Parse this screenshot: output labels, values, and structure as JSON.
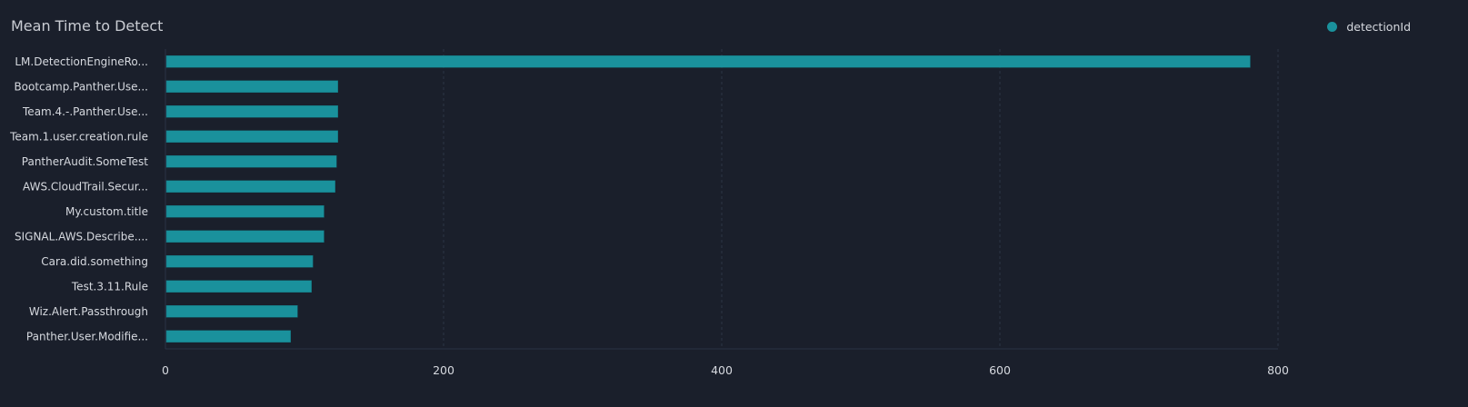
{
  "chart_data": {
    "type": "bar",
    "orientation": "horizontal",
    "title": "Mean Time to Detect",
    "categories": [
      "LM.DetectionEngineRo...",
      "Bootcamp.Panther.Use...",
      "Team.4.-.Panther.Use...",
      "Team.1.user.creation.rule",
      "PantherAudit.SomeTest",
      "AWS.CloudTrail.Secur...",
      "My.custom.title",
      "SIGNAL.AWS.Describe....",
      "Cara.did.something",
      "Test.3.11.Rule",
      "Wiz.Alert.Passthrough",
      "Panther.User.Modifie..."
    ],
    "series": [
      {
        "name": "detectionId",
        "values": [
          780,
          124,
          124,
          124,
          123,
          122,
          114,
          114,
          106,
          105,
          95,
          90
        ]
      }
    ],
    "xlim": [
      0,
      800
    ],
    "xticks": [
      "0",
      "200",
      "400",
      "600",
      "800"
    ],
    "grid": true,
    "legend": "top-right",
    "colors": {
      "bar": "#1a919c",
      "background": "#1a1f2b",
      "grid": "#2c3445"
    }
  }
}
